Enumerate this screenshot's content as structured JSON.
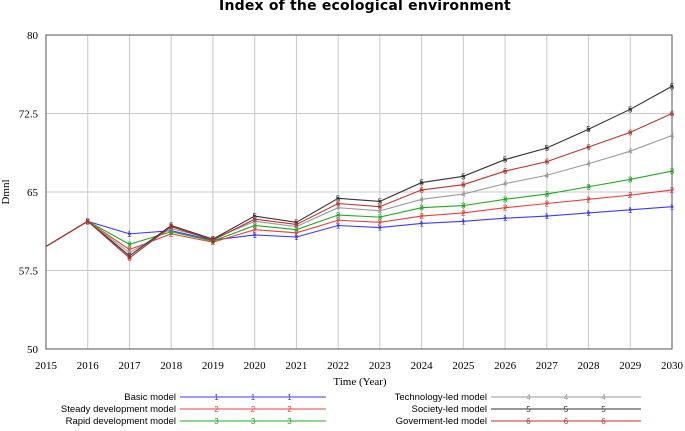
{
  "chart_data": {
    "type": "line",
    "title": "Index of the ecological environment",
    "xlabel": "Time (Year)",
    "ylabel": "Dmnl",
    "x": [
      2015,
      2016,
      2017,
      2018,
      2019,
      2020,
      2021,
      2022,
      2023,
      2024,
      2025,
      2026,
      2027,
      2028,
      2029,
      2030
    ],
    "x_tick_labels": [
      "2015",
      "2016",
      "2017",
      "2018",
      "2019",
      "2020",
      "2021",
      "2022",
      "2023",
      "2024",
      "2025",
      "2026",
      "2027",
      "2028",
      "2029",
      "2030"
    ],
    "ylim": [
      50,
      80
    ],
    "y_ticks": [
      50,
      57.5,
      65,
      72.5,
      80
    ],
    "y_tick_labels": [
      "50",
      "57.5",
      "65",
      "72.5",
      "80"
    ],
    "grid": true,
    "legend_position": "bottom",
    "series": [
      {
        "name": "Basic model",
        "marker": "1",
        "color": "#3b3bff",
        "values": [
          59.8,
          62.2,
          61.0,
          61.3,
          60.4,
          60.9,
          60.7,
          61.8,
          61.6,
          62.0,
          62.2,
          62.5,
          62.7,
          63.0,
          63.3,
          63.6
        ]
      },
      {
        "name": "Steady development model",
        "marker": "2",
        "color": "#e8413e",
        "values": [
          59.8,
          62.2,
          59.5,
          61.0,
          60.2,
          61.4,
          61.1,
          62.3,
          62.1,
          62.7,
          63.0,
          63.5,
          63.9,
          64.3,
          64.7,
          65.2
        ]
      },
      {
        "name": "Rapid development model",
        "marker": "3",
        "color": "#22a822",
        "values": [
          59.8,
          62.2,
          60.0,
          61.2,
          60.3,
          61.8,
          61.4,
          62.8,
          62.6,
          63.5,
          63.7,
          64.3,
          64.8,
          65.5,
          66.2,
          67.0
        ]
      },
      {
        "name": "Technology-led model",
        "marker": "4",
        "color": "#9a9a9a",
        "values": [
          59.8,
          62.2,
          59.2,
          61.5,
          60.5,
          62.2,
          61.7,
          63.5,
          63.2,
          64.3,
          64.8,
          65.8,
          66.6,
          67.7,
          68.9,
          70.4
        ]
      },
      {
        "name": "Society-led model",
        "marker": "5",
        "color": "#333333",
        "values": [
          59.8,
          62.2,
          58.9,
          61.8,
          60.5,
          62.7,
          62.1,
          64.4,
          64.1,
          65.9,
          66.5,
          68.1,
          69.2,
          71.0,
          72.9,
          75.1
        ]
      },
      {
        "name": "Goverment-led model",
        "marker": "6",
        "color": "#b5352f",
        "values": [
          59.8,
          62.2,
          58.7,
          61.7,
          60.4,
          62.4,
          61.9,
          63.9,
          63.6,
          65.2,
          65.7,
          67.0,
          67.9,
          69.3,
          70.7,
          72.5
        ]
      }
    ]
  }
}
